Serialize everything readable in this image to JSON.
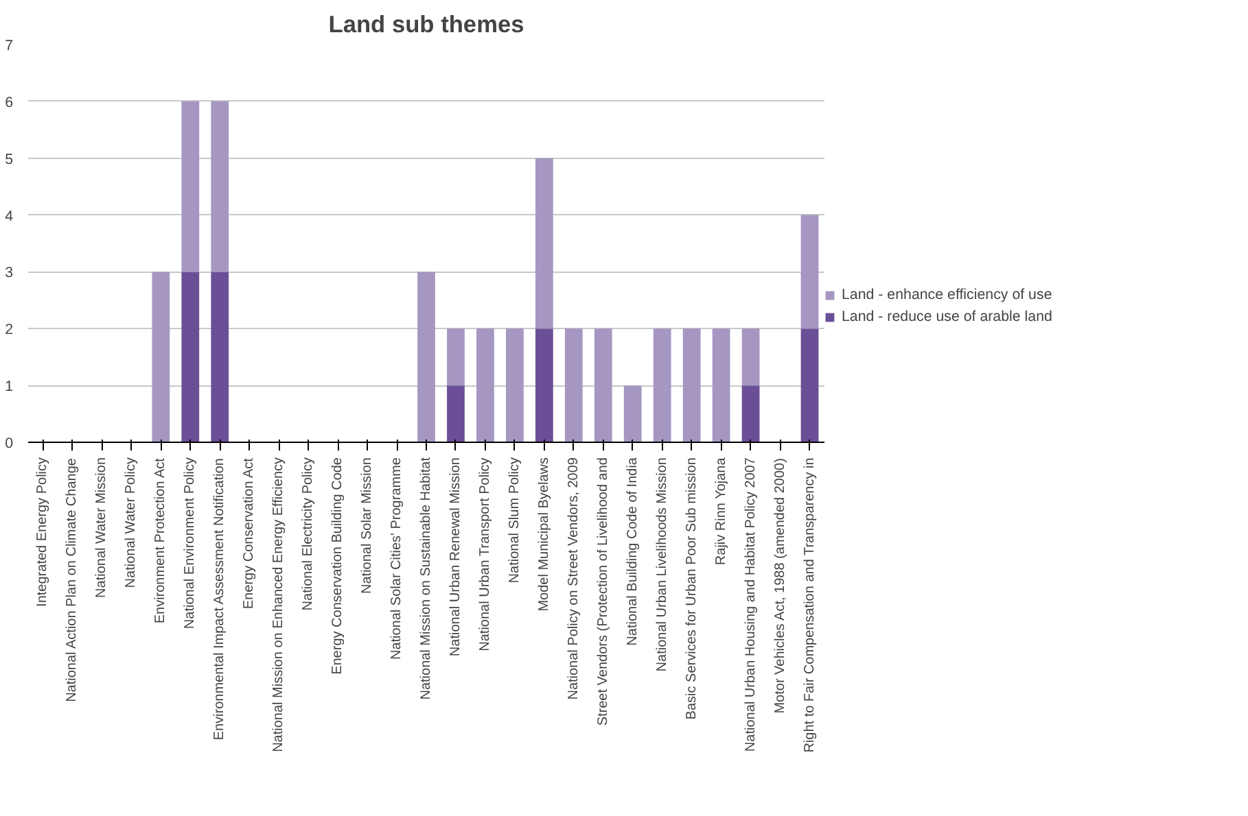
{
  "chart_data": {
    "type": "bar",
    "title": "Land sub themes",
    "stacked": true,
    "categories": [
      "Integrated Energy Policy",
      "National Action Plan on Climate Change",
      "National Water Mission",
      "National Water Policy",
      "Environment Protection Act",
      "National Environment Policy",
      "Environmental Impact Assessment Notification",
      "Energy Conservation Act",
      "National Mission on Enhanced Energy Efficiency",
      "National Electricity Policy",
      "Energy Conservation Building Code",
      "National Solar Mission",
      "National Solar Cities' Programme",
      "National Mission on Sustainable Habitat",
      "National Urban Renewal Mission",
      "National Urban Transport Policy",
      "National Slum Policy",
      "Model Municipal Byelaws",
      "National Policy on Street Vendors, 2009",
      "Street Vendors (Protection of Livelihood and",
      "National Building Code of India",
      "National Urban Livelihoods Mission",
      "Basic Services for Urban Poor Sub mission",
      "Rajiv Rinn Yojana",
      "National Urban Housing and Habitat Policy 2007",
      "Motor Vehicles Act, 1988 (amended 2000)",
      "Right to Fair Compensation and Transparency in"
    ],
    "series": [
      {
        "name": "Land - reduce use of arable land",
        "color": "#6b4f96",
        "values": [
          0,
          0,
          0,
          0,
          0,
          3,
          3,
          0,
          0,
          0,
          0,
          0,
          0,
          0,
          1,
          0,
          0,
          2,
          0,
          0,
          0,
          0,
          0,
          0,
          1,
          0,
          2
        ]
      },
      {
        "name": "Land - enhance efficiency of use",
        "color": "#a597c2",
        "values": [
          0,
          0,
          0,
          0,
          3,
          3,
          3,
          0,
          0,
          0,
          0,
          0,
          0,
          3,
          1,
          2,
          2,
          3,
          2,
          2,
          1,
          2,
          2,
          2,
          1,
          0,
          2
        ]
      }
    ],
    "ylim": [
      0,
      7
    ],
    "yticks": [
      0,
      1,
      2,
      3,
      4,
      5,
      6,
      7
    ],
    "grid": "y",
    "legend": "right"
  }
}
